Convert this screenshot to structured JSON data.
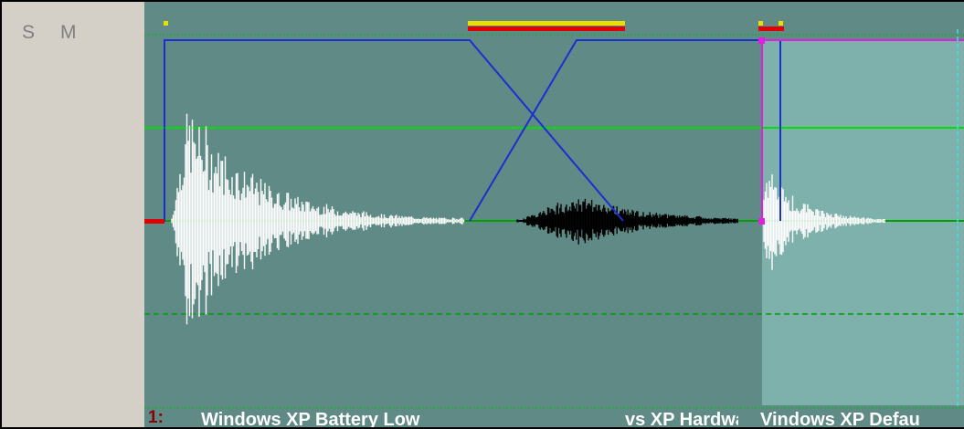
{
  "track_header": {
    "solo_label": "S",
    "mute_label": "M"
  },
  "track": {
    "number": "1:"
  },
  "clips": [
    {
      "name": "Windows XP Battery Low"
    },
    {
      "name": "vs XP Hardwa"
    },
    {
      "name": "Vindows XP Defau"
    }
  ],
  "colors": {
    "timeline_bg": "#5f8a86",
    "selected_region_bg": "#7eb0ac",
    "volume_envelope": "#1a2fd0",
    "pan_envelope": "#e020e0",
    "grid_line": "#00e000",
    "waveform": "#ffffff",
    "crossfade_waveform": "#000000",
    "crossfade_marker": "#e00000",
    "marker_yellow": "#e8e000",
    "header_bg": "#d4d0c8",
    "track_number": "#8b0000"
  }
}
